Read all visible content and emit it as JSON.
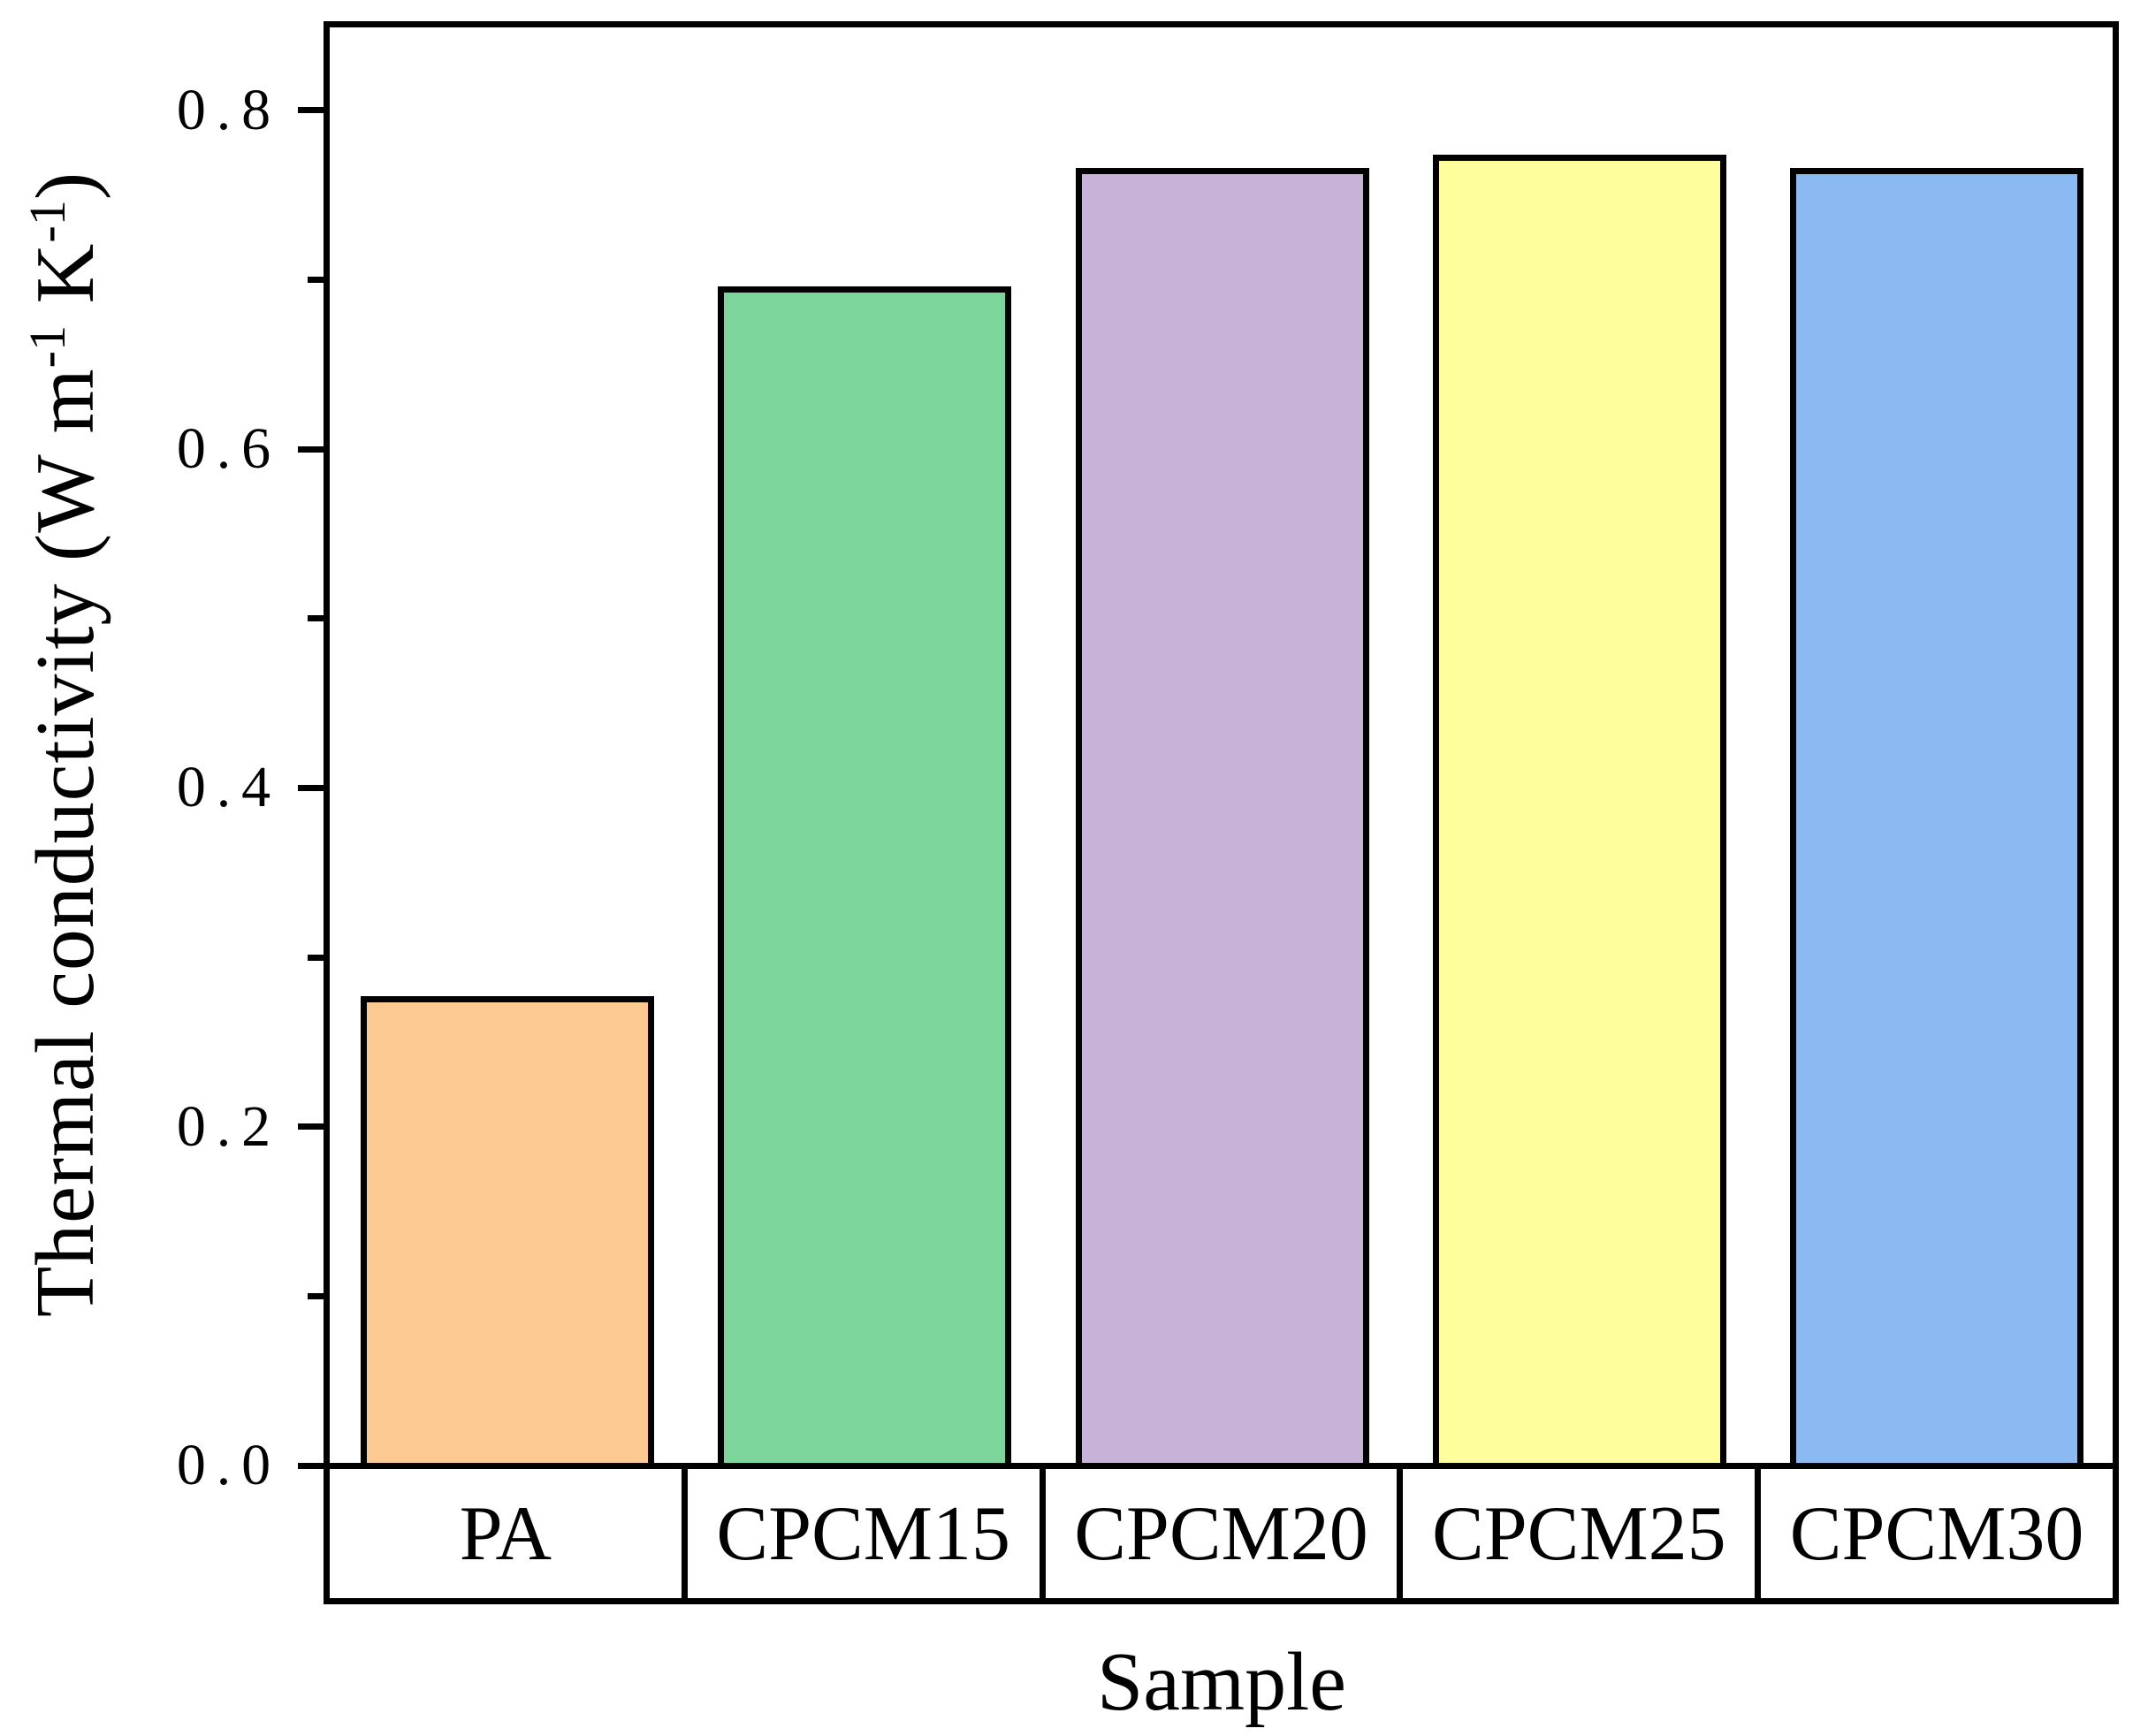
{
  "figure": {
    "background_color": "#ffffff",
    "frame_color": "#000000",
    "text_color": "#000000"
  },
  "chart_data": {
    "type": "bar",
    "title": "",
    "xlabel": "Sample",
    "ylabel": "Thermal conductivity (W m-1 K-1)",
    "ylabel_parts": [
      {
        "text": "Thermal conductivity (W m"
      },
      {
        "text": "-1",
        "sup": true
      },
      {
        "text": " K",
        "sup": false
      },
      {
        "text": "-1",
        "sup": true
      },
      {
        "text": ")",
        "sup": false
      }
    ],
    "categories": [
      "PA",
      "CPCM15",
      "CPCM20",
      "CPCM25",
      "CPCM30"
    ],
    "values": [
      0.277,
      0.696,
      0.766,
      0.774,
      0.766
    ],
    "bar_colors": [
      "#FDC992",
      "#7CD59A",
      "#C7B2D8",
      "#FEFE9C",
      "#8ABAF1"
    ],
    "bar_edge_color": "#000000",
    "ylim": [
      0,
      0.851
    ],
    "yticks_major": [
      0.0,
      0.2,
      0.4,
      0.6,
      0.8
    ],
    "ytick_labels": [
      "0.0",
      "0.2",
      "0.4",
      "0.6",
      "0.8"
    ],
    "yticks_minor": [
      0.1,
      0.3,
      0.5,
      0.7
    ],
    "grid": false,
    "legend": null
  }
}
